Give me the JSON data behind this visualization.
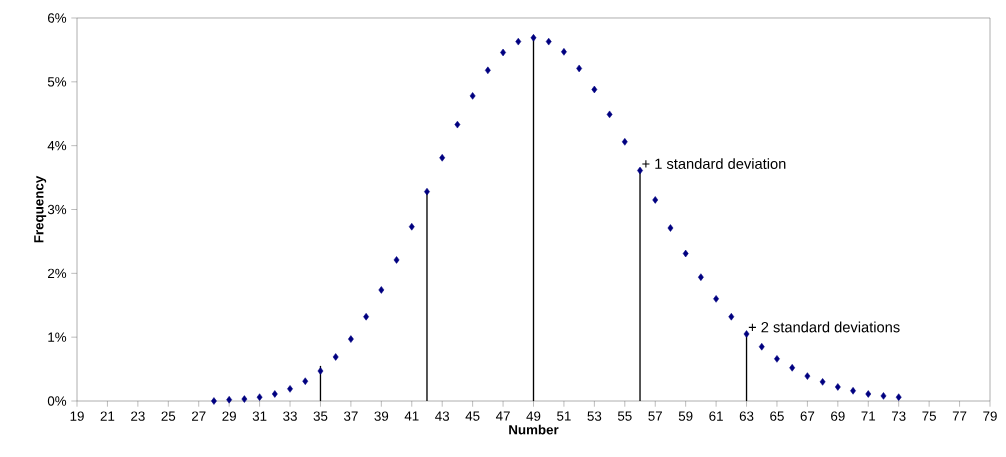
{
  "chart_data": {
    "type": "scatter",
    "xlabel": "Number",
    "ylabel": "Frequency",
    "xlim": [
      19,
      79
    ],
    "xticks": [
      19,
      21,
      23,
      25,
      27,
      29,
      31,
      33,
      35,
      37,
      39,
      41,
      43,
      45,
      47,
      49,
      51,
      53,
      55,
      57,
      59,
      61,
      63,
      65,
      67,
      69,
      71,
      73,
      75,
      77,
      79
    ],
    "ylim": [
      0,
      6
    ],
    "yticks": [
      {
        "value": 0,
        "label": "0%"
      },
      {
        "value": 1,
        "label": "1%"
      },
      {
        "value": 2,
        "label": "2%"
      },
      {
        "value": 3,
        "label": "3%"
      },
      {
        "value": 4,
        "label": "4%"
      },
      {
        "value": 5,
        "label": "5%"
      },
      {
        "value": 6,
        "label": "6%"
      }
    ],
    "marker": "diamond",
    "grid": false,
    "series": [
      {
        "color": "#000080",
        "x": [
          28,
          29,
          30,
          31,
          32,
          33,
          34,
          35,
          36,
          37,
          38,
          39,
          40,
          41,
          42,
          43,
          44,
          45,
          46,
          47,
          48,
          49,
          50,
          51,
          52,
          53,
          54,
          55,
          56,
          57,
          58,
          59,
          60,
          61,
          62,
          63,
          64,
          65,
          66,
          67,
          68,
          69,
          70,
          71,
          72,
          73
        ],
        "values": [
          0,
          0.02,
          0.03,
          0.06,
          0.11,
          0.19,
          0.31,
          0.47,
          0.69,
          0.97,
          1.32,
          1.74,
          2.21,
          2.73,
          3.28,
          3.81,
          4.33,
          4.78,
          5.18,
          5.46,
          5.63,
          5.69,
          5.63,
          5.47,
          5.21,
          4.88,
          4.49,
          4.06,
          3.61,
          3.15,
          2.71,
          2.31,
          1.94,
          1.6,
          1.32,
          1.05,
          0.85,
          0.66,
          0.52,
          0.39,
          0.3,
          0.22,
          0.16,
          0.11,
          0.08,
          0.06
        ]
      },
      {
        "type": "bar",
        "color": "#000000",
        "x": [
          35,
          42,
          49,
          56,
          63
        ],
        "values": [
          0.55,
          3.28,
          5.69,
          3.61,
          1.05
        ]
      }
    ],
    "annotations": [
      {
        "text": "+ 1 standard deviation",
        "x": 56,
        "y": 3.61
      },
      {
        "text": "+ 2 standard deviations",
        "x": 63,
        "y": 1.05
      }
    ]
  }
}
